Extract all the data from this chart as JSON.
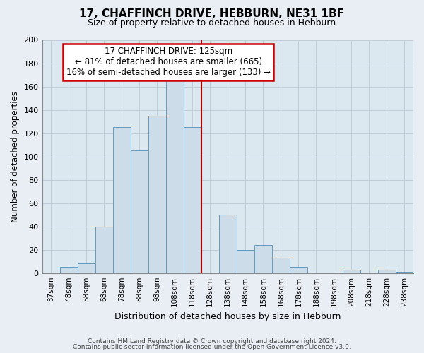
{
  "title": "17, CHAFFINCH DRIVE, HEBBURN, NE31 1BF",
  "subtitle": "Size of property relative to detached houses in Hebburn",
  "xlabel": "Distribution of detached houses by size in Hebburn",
  "ylabel": "Number of detached properties",
  "bin_labels": [
    "37sqm",
    "48sqm",
    "58sqm",
    "68sqm",
    "78sqm",
    "88sqm",
    "98sqm",
    "108sqm",
    "118sqm",
    "128sqm",
    "138sqm",
    "148sqm",
    "158sqm",
    "168sqm",
    "178sqm",
    "188sqm",
    "198sqm",
    "208sqm",
    "218sqm",
    "228sqm",
    "238sqm"
  ],
  "bar_heights": [
    0,
    5,
    8,
    40,
    125,
    105,
    135,
    165,
    125,
    0,
    50,
    20,
    24,
    13,
    5,
    0,
    0,
    3,
    0,
    3,
    1
  ],
  "bar_color": "#ccdce8",
  "bar_edge_color": "#6699bb",
  "property_line_x": 9.0,
  "annotation_title": "17 CHAFFINCH DRIVE: 125sqm",
  "annotation_line1": "← 81% of detached houses are smaller (665)",
  "annotation_line2": "16% of semi-detached houses are larger (133) →",
  "annotation_box_color": "#ffffff",
  "annotation_box_edge": "#cc0000",
  "vline_color": "#aa0000",
  "footer1": "Contains HM Land Registry data © Crown copyright and database right 2024.",
  "footer2": "Contains public sector information licensed under the Open Government Licence v3.0.",
  "ylim": [
    0,
    200
  ],
  "yticks": [
    0,
    20,
    40,
    60,
    80,
    100,
    120,
    140,
    160,
    180,
    200
  ],
  "background_color": "#e8eef4",
  "plot_bg_color": "#dce8f0",
  "grid_color": "#c0ccd8"
}
